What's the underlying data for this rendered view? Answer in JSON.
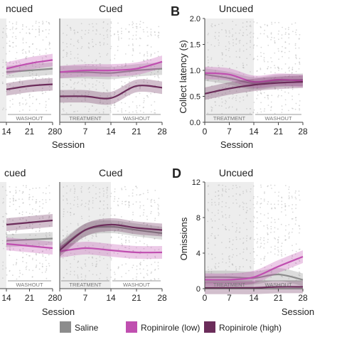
{
  "figure": {
    "legend": [
      {
        "name": "Saline",
        "color": "#8c8c8c"
      },
      {
        "name": "Ropinirole (low)",
        "color": "#c04fb0"
      },
      {
        "name": "Ropinirole (high)",
        "color": "#6b2c5a"
      }
    ],
    "xlabel": "Session",
    "treatment_label": "TREATMENT",
    "washout_label": "WASHOUT"
  },
  "chart_data": [
    {
      "id": "A-uncued",
      "type": "line",
      "panel_title": "ncued",
      "x_ticks": [
        "14",
        "21",
        "28"
      ],
      "series": [
        {
          "name": "Saline",
          "x": [
            0,
            7,
            14,
            21,
            28
          ],
          "values": [
            0.62,
            0.6,
            0.58,
            0.6,
            0.62
          ]
        },
        {
          "name": "Ropinirole (low)",
          "x": [
            0,
            7,
            14,
            21,
            28
          ],
          "values": [
            0.6,
            0.6,
            0.62,
            0.68,
            0.72
          ]
        },
        {
          "name": "Ropinirole (high)",
          "x": [
            0,
            7,
            14,
            21,
            28
          ],
          "values": [
            0.3,
            0.32,
            0.38,
            0.42,
            0.44
          ]
        }
      ]
    },
    {
      "id": "A-cued",
      "type": "line",
      "panel_title": "Cued",
      "x_ticks": [
        "0",
        "7",
        "14",
        "21",
        "28"
      ],
      "series": [
        {
          "name": "Saline",
          "x": [
            0,
            7,
            14,
            21,
            28
          ],
          "values": [
            0.58,
            0.58,
            0.57,
            0.6,
            0.62
          ]
        },
        {
          "name": "Ropinirole (low)",
          "x": [
            0,
            7,
            14,
            21,
            28
          ],
          "values": [
            0.58,
            0.6,
            0.6,
            0.62,
            0.7
          ]
        },
        {
          "name": "Ropinirole (high)",
          "x": [
            0,
            7,
            14,
            21,
            28
          ],
          "values": [
            0.3,
            0.3,
            0.28,
            0.42,
            0.4
          ]
        }
      ]
    },
    {
      "id": "B-uncued",
      "type": "line",
      "panel_letter": "B",
      "panel_title": "Uncued",
      "ylabel": "Collect latency (s)",
      "x_ticks": [
        "0",
        "7",
        "14",
        "21",
        "28"
      ],
      "y_ticks": [
        "0.0",
        "0.5",
        "1.0",
        "1.5",
        "2.0"
      ],
      "ylim": [
        0,
        2.0
      ],
      "series": [
        {
          "name": "Saline",
          "x": [
            0,
            7,
            14,
            21,
            28
          ],
          "values": [
            0.92,
            0.85,
            0.75,
            0.8,
            0.82
          ]
        },
        {
          "name": "Ropinirole (low)",
          "x": [
            0,
            7,
            14,
            21,
            28
          ],
          "values": [
            0.95,
            0.92,
            0.78,
            0.82,
            0.8
          ]
        },
        {
          "name": "Ropinirole (high)",
          "x": [
            0,
            7,
            14,
            21,
            28
          ],
          "values": [
            0.55,
            0.65,
            0.72,
            0.76,
            0.78
          ]
        }
      ]
    },
    {
      "id": "C-uncued",
      "type": "line",
      "panel_title": "cued",
      "x_ticks": [
        "14",
        "21",
        "28"
      ],
      "series": [
        {
          "name": "Saline",
          "x": [
            0,
            7,
            14,
            21,
            28
          ],
          "values": [
            0.52,
            0.5,
            0.45,
            0.46,
            0.47
          ]
        },
        {
          "name": "Ropinirole (low)",
          "x": [
            0,
            7,
            14,
            21,
            28
          ],
          "values": [
            0.5,
            0.46,
            0.42,
            0.4,
            0.38
          ]
        },
        {
          "name": "Ropinirole (high)",
          "x": [
            0,
            7,
            14,
            21,
            28
          ],
          "values": [
            0.6,
            0.58,
            0.6,
            0.62,
            0.64
          ]
        }
      ]
    },
    {
      "id": "C-cued",
      "type": "line",
      "panel_title": "Cued",
      "x_ticks": [
        "0",
        "7",
        "14",
        "21",
        "28"
      ],
      "series": [
        {
          "name": "Saline",
          "x": [
            0,
            7,
            14,
            21,
            28
          ],
          "values": [
            0.38,
            0.55,
            0.58,
            0.55,
            0.52
          ]
        },
        {
          "name": "Ropinirole (low)",
          "x": [
            0,
            7,
            14,
            21,
            28
          ],
          "values": [
            0.35,
            0.38,
            0.36,
            0.34,
            0.34
          ]
        },
        {
          "name": "Ropinirole (high)",
          "x": [
            0,
            7,
            14,
            21,
            28
          ],
          "values": [
            0.36,
            0.55,
            0.6,
            0.57,
            0.55
          ]
        }
      ]
    },
    {
      "id": "D-uncued",
      "type": "line",
      "panel_letter": "D",
      "panel_title": "Uncued",
      "ylabel": "Omissions",
      "x_ticks": [
        "0",
        "7",
        "14",
        "21",
        "28"
      ],
      "y_ticks": [
        "0",
        "4",
        "8",
        "12"
      ],
      "ylim": [
        0,
        12
      ],
      "series": [
        {
          "name": "Saline",
          "x": [
            0,
            7,
            14,
            21,
            28
          ],
          "values": [
            1.3,
            1.3,
            1.2,
            1.6,
            1.0
          ]
        },
        {
          "name": "Ropinirole (low)",
          "x": [
            0,
            7,
            14,
            21,
            28
          ],
          "values": [
            1.0,
            1.0,
            1.3,
            2.5,
            3.6
          ]
        },
        {
          "name": "Ropinirole (high)",
          "x": [
            0,
            7,
            14,
            21,
            28
          ],
          "values": [
            0.1,
            0.1,
            0.1,
            0.2,
            0.2
          ]
        }
      ]
    }
  ]
}
